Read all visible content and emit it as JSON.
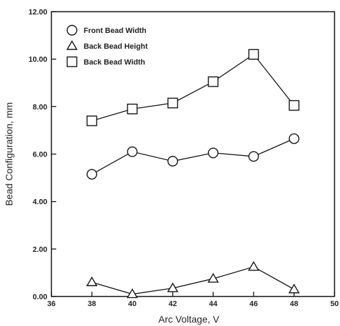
{
  "chart_data": {
    "type": "line",
    "title": "",
    "xlabel": "Arc Voltage, V",
    "ylabel": "Bead Configuration, mm",
    "xlim": [
      36,
      50
    ],
    "ylim": [
      0,
      12
    ],
    "x_ticks": [
      36,
      38,
      40,
      42,
      44,
      46,
      48,
      50
    ],
    "x_tick_labels": [
      "36",
      "38",
      "40",
      "42",
      "44",
      "46",
      "48",
      "50"
    ],
    "y_ticks": [
      0,
      2,
      4,
      6,
      8,
      10,
      12
    ],
    "y_tick_labels": [
      "0.00",
      "2.00",
      "4.00",
      "6.00",
      "8.00",
      "10.00",
      "12.00"
    ],
    "grid": false,
    "legend_position": "top-left",
    "x": [
      38,
      40,
      42,
      44,
      46,
      48
    ],
    "series": [
      {
        "name": "Front Bead Width",
        "marker": "circle",
        "values": [
          5.15,
          6.1,
          5.7,
          6.05,
          5.9,
          6.65
        ]
      },
      {
        "name": "Back Bead Height",
        "marker": "triangle",
        "values": [
          0.6,
          0.1,
          0.35,
          0.75,
          1.25,
          0.3
        ]
      },
      {
        "name": "Back Bead Width",
        "marker": "square",
        "values": [
          7.4,
          7.9,
          8.15,
          9.05,
          10.2,
          8.05
        ]
      }
    ]
  }
}
